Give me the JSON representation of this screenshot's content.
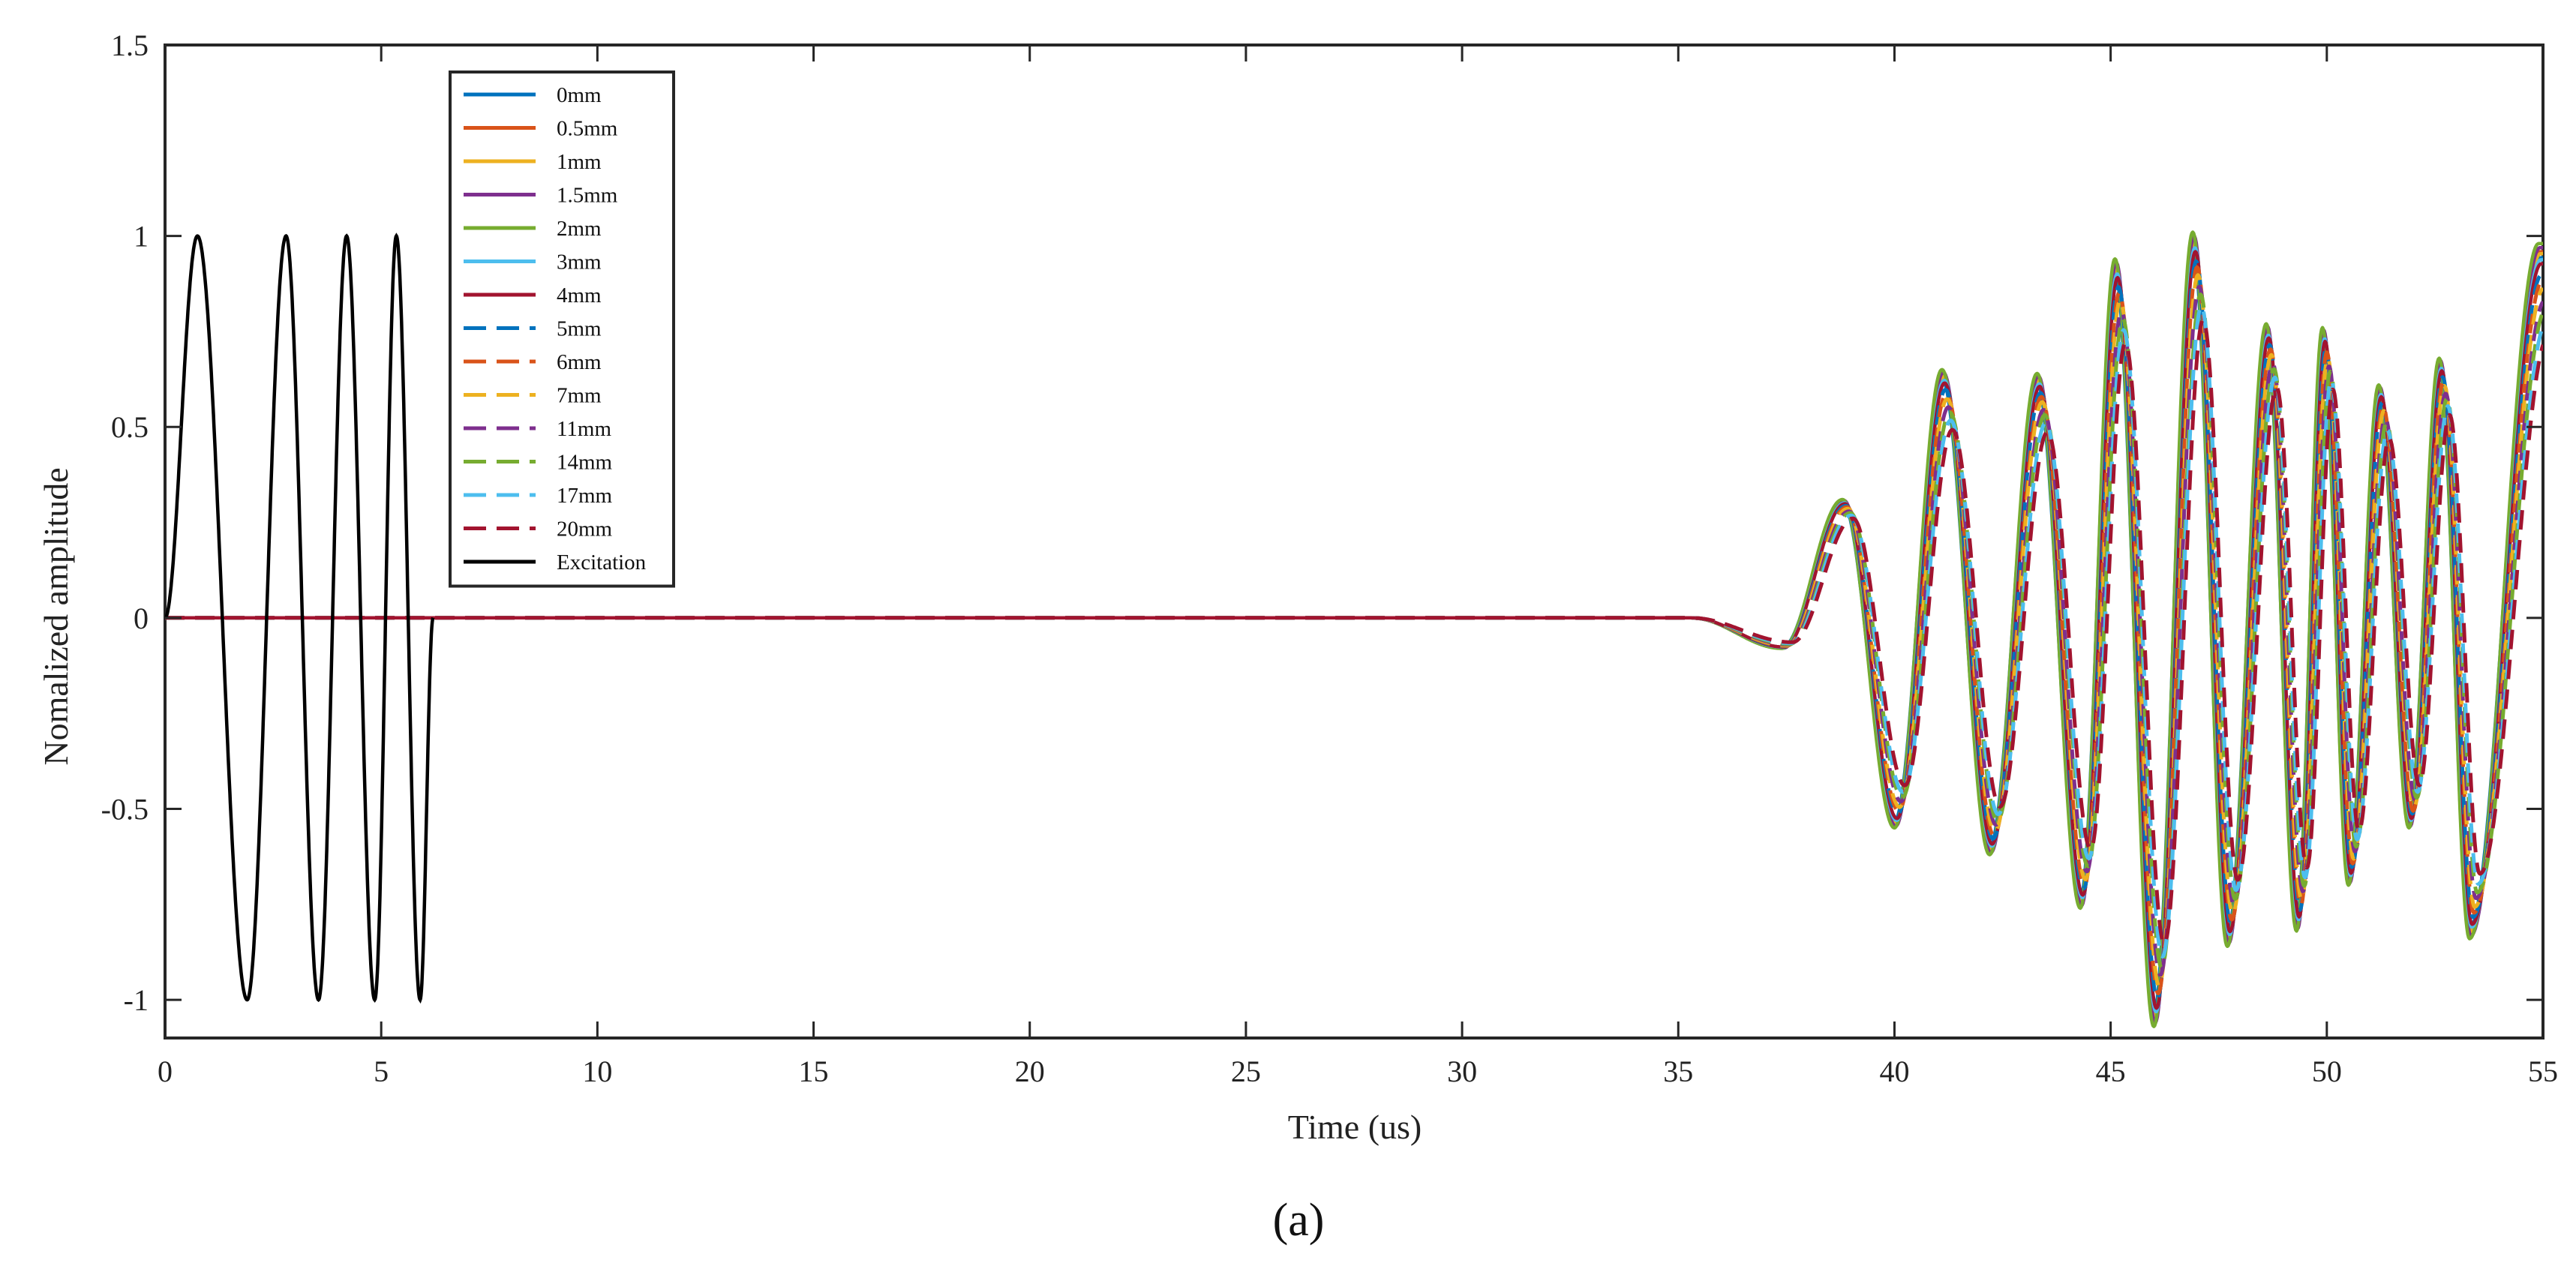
{
  "chart_data": {
    "type": "line",
    "xlabel": "Time (us)",
    "ylabel": "Nomalized amplitude",
    "xlim": [
      0,
      55
    ],
    "ylim": [
      -1.1,
      1.5
    ],
    "xticks": [
      0,
      5,
      10,
      15,
      20,
      25,
      30,
      35,
      40,
      45,
      50,
      55
    ],
    "yticks": [
      1.5,
      1,
      0.5,
      0,
      -0.5,
      -1
    ],
    "ytick_labels": [
      "1.5",
      "1",
      "0.5",
      "0",
      "-0.5",
      "-1"
    ],
    "grid": false,
    "legend_position": "top-left",
    "caption": "(a)",
    "excitation": {
      "name": "Excitation",
      "color": "#000000",
      "t_end": 6.2,
      "cycles": 4,
      "peak_times": [
        0.75,
        2.8,
        4.2,
        5.35
      ],
      "trough_times": [
        1.9,
        3.55,
        4.85,
        5.9
      ]
    },
    "response_envelope": {
      "onset_time": 35.3,
      "peaks": [
        {
          "t": 38.8,
          "max": 0.31,
          "min": 0.2
        },
        {
          "t": 41.1,
          "max": 0.65,
          "min": 0.3
        },
        {
          "t": 43.3,
          "max": 0.64,
          "min": 0.3
        },
        {
          "t": 45.1,
          "max": 0.94,
          "min": 0.45
        },
        {
          "t": 46.9,
          "max": 1.01,
          "min": 0.5
        },
        {
          "t": 48.6,
          "max": 0.77,
          "min": 0.4
        },
        {
          "t": 49.9,
          "max": 0.76,
          "min": 0.4
        },
        {
          "t": 51.2,
          "max": 0.61,
          "min": 0.3
        },
        {
          "t": 52.6,
          "max": 0.68,
          "min": 0.35
        },
        {
          "t": 54.9,
          "max": 0.98,
          "min": 0.45
        }
      ],
      "troughs": [
        {
          "t": 37.4,
          "min": -0.08
        },
        {
          "t": 40.0,
          "min": -0.55
        },
        {
          "t": 42.2,
          "min": -0.62
        },
        {
          "t": 44.3,
          "min": -0.76
        },
        {
          "t": 46.0,
          "min": -1.07
        },
        {
          "t": 47.7,
          "min": -0.86
        },
        {
          "t": 49.3,
          "min": -0.82
        },
        {
          "t": 50.5,
          "min": -0.7
        },
        {
          "t": 51.9,
          "min": -0.55
        },
        {
          "t": 53.3,
          "min": -0.84
        }
      ]
    },
    "series": [
      {
        "name": "0mm",
        "color": "#0072BD",
        "style": "solid",
        "scale": 0.93,
        "delay": 0.0
      },
      {
        "name": "0.5mm",
        "color": "#D95319",
        "style": "solid",
        "scale": 0.96,
        "delay": 0.02
      },
      {
        "name": "1mm",
        "color": "#EDB120",
        "style": "solid",
        "scale": 0.95,
        "delay": 0.04
      },
      {
        "name": "1.5mm",
        "color": "#7E2F8E",
        "style": "solid",
        "scale": 0.98,
        "delay": 0.03
      },
      {
        "name": "2mm",
        "color": "#77AC30",
        "style": "solid",
        "scale": 1.0,
        "delay": 0.0
      },
      {
        "name": "3mm",
        "color": "#4DBEEE",
        "style": "solid",
        "scale": 0.92,
        "delay": 0.05
      },
      {
        "name": "4mm",
        "color": "#A2142F",
        "style": "solid",
        "scale": 0.9,
        "delay": 0.06
      },
      {
        "name": "5mm",
        "color": "#0072BD",
        "style": "dashed",
        "scale": 0.85,
        "delay": 0.08
      },
      {
        "name": "6mm",
        "color": "#D95319",
        "style": "dashed",
        "scale": 0.82,
        "delay": 0.1
      },
      {
        "name": "7mm",
        "color": "#EDB120",
        "style": "dashed",
        "scale": 0.78,
        "delay": 0.12
      },
      {
        "name": "11mm",
        "color": "#7E2F8E",
        "style": "dashed",
        "scale": 0.72,
        "delay": 0.15
      },
      {
        "name": "14mm",
        "color": "#77AC30",
        "style": "dashed",
        "scale": 0.68,
        "delay": 0.18
      },
      {
        "name": "17mm",
        "color": "#4DBEEE",
        "style": "dashed",
        "scale": 0.62,
        "delay": 0.2
      },
      {
        "name": "20mm",
        "color": "#A2142F",
        "style": "dashed",
        "scale": 0.55,
        "delay": 0.24
      }
    ]
  }
}
